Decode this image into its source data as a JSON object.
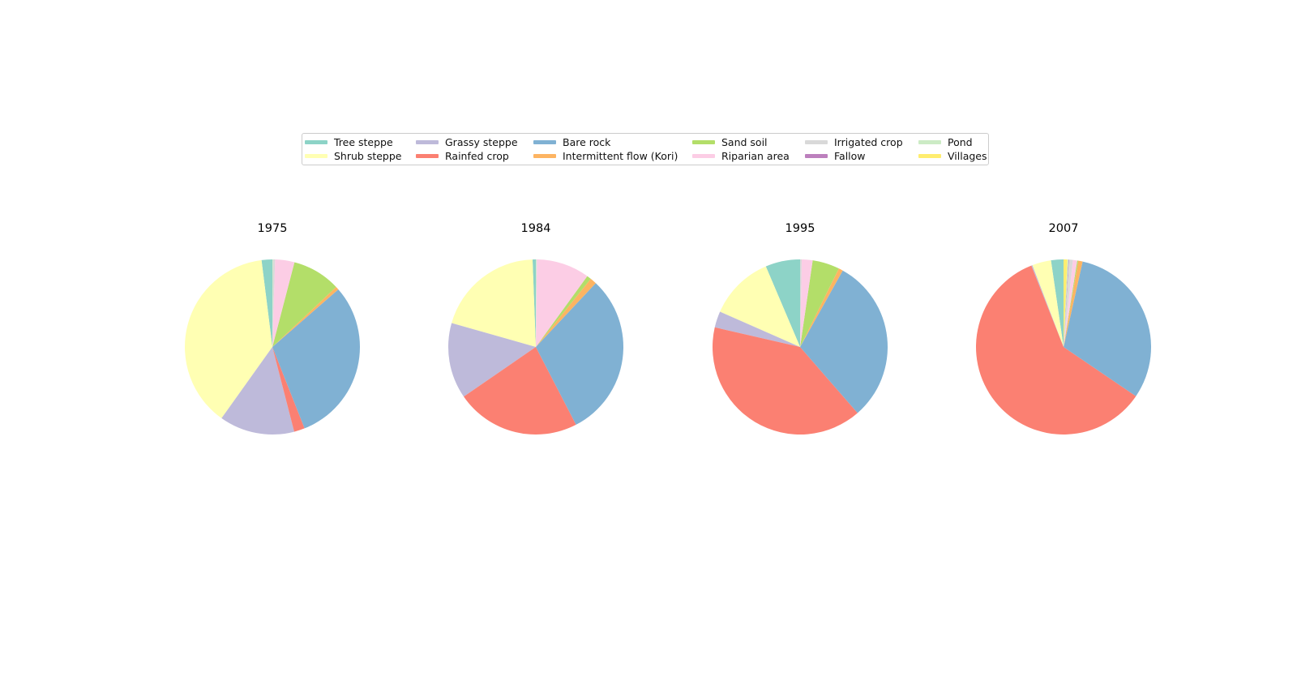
{
  "chart_data": [
    {
      "type": "pie",
      "title": "1975",
      "categories": [
        "Tree steppe",
        "Shrub steppe",
        "Grassy steppe",
        "Rainfed crop",
        "Bare rock",
        "Intermittent flow (Kori)",
        "Sand soil",
        "Riparian area",
        "Irrigated crop",
        "Fallow",
        "Pond",
        "Villages"
      ],
      "values": [
        2.0,
        38.5,
        14.0,
        2.0,
        30.7,
        0.6,
        9.0,
        3.6,
        0.4,
        0.0,
        0.1,
        0.0
      ]
    },
    {
      "type": "pie",
      "title": "1984",
      "categories": [
        "Tree steppe",
        "Shrub steppe",
        "Grassy steppe",
        "Rainfed crop",
        "Bare rock",
        "Intermittent flow (Kori)",
        "Sand soil",
        "Riparian area",
        "Irrigated crop",
        "Fallow",
        "Pond",
        "Villages"
      ],
      "values": [
        0.6,
        20.0,
        14.0,
        23.0,
        30.4,
        1.2,
        0.8,
        9.8,
        0.1,
        0.0,
        0.1,
        0.0
      ]
    },
    {
      "type": "pie",
      "title": "1995",
      "categories": [
        "Tree steppe",
        "Shrub steppe",
        "Grassy steppe",
        "Rainfed crop",
        "Bare rock",
        "Intermittent flow (Kori)",
        "Sand soil",
        "Riparian area",
        "Irrigated crop",
        "Fallow",
        "Pond",
        "Villages"
      ],
      "values": [
        6.4,
        12.0,
        3.0,
        40.0,
        30.5,
        0.8,
        5.0,
        2.0,
        0.3,
        0.0,
        0.0,
        0.0
      ]
    },
    {
      "type": "pie",
      "title": "2007",
      "categories": [
        "Tree steppe",
        "Shrub steppe",
        "Grassy steppe",
        "Rainfed crop",
        "Bare rock",
        "Intermittent flow (Kori)",
        "Sand soil",
        "Riparian area",
        "Irrigated crop",
        "Fallow",
        "Pond",
        "Villages"
      ],
      "values": [
        2.3,
        3.5,
        0.2,
        59.5,
        31.0,
        0.8,
        0.2,
        0.8,
        0.7,
        0.1,
        0.2,
        0.7
      ]
    }
  ],
  "legend": {
    "placement": "upper-center",
    "entries": [
      {
        "label": "Tree steppe",
        "color": "#8dd3c7"
      },
      {
        "label": "Shrub steppe",
        "color": "#ffffb3"
      },
      {
        "label": "Grassy steppe",
        "color": "#bebada"
      },
      {
        "label": "Rainfed crop",
        "color": "#fb8072"
      },
      {
        "label": "Bare rock",
        "color": "#80b1d3"
      },
      {
        "label": "Intermittent flow (Kori)",
        "color": "#fdb462"
      },
      {
        "label": "Sand soil",
        "color": "#b3de69"
      },
      {
        "label": "Riparian area",
        "color": "#fccde5"
      },
      {
        "label": "Irrigated crop",
        "color": "#d9d9d9"
      },
      {
        "label": "Fallow",
        "color": "#bc80bd"
      },
      {
        "label": "Pond",
        "color": "#ccebc5"
      },
      {
        "label": "Villages",
        "color": "#ffed6f"
      }
    ]
  }
}
